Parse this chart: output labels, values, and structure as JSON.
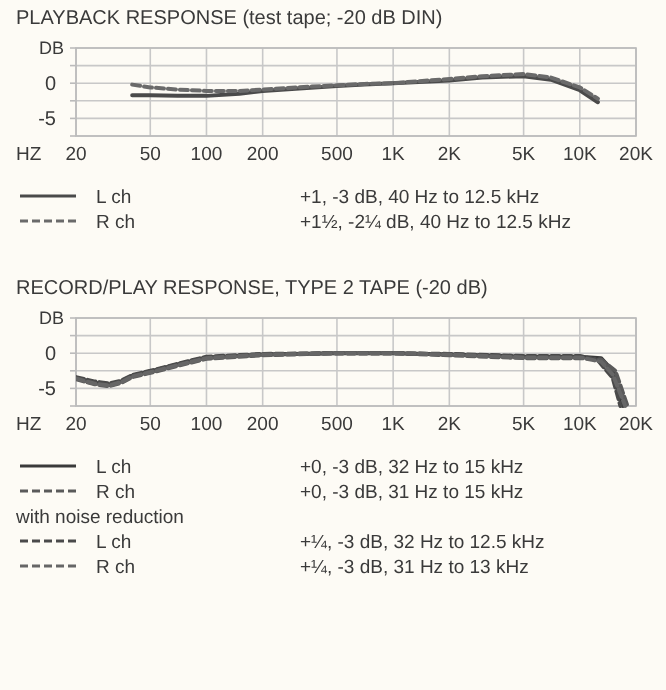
{
  "chart_data": [
    {
      "type": "line",
      "title": "PLAYBACK RESPONSE (test tape; -20 dB DIN)",
      "ylabel": "DB",
      "xlabel": "HZ",
      "log": "x",
      "grid": true,
      "legend": "bottom",
      "xlim": [
        20,
        20000
      ],
      "ylim": [
        -7.5,
        5
      ],
      "xticks": [
        20,
        50,
        100,
        200,
        500,
        {
          "value": 1000,
          "label": "1K"
        },
        {
          "value": 2000,
          "label": "2K"
        },
        {
          "value": 5000,
          "label": "5K"
        },
        {
          "value": 10000,
          "label": "10K"
        },
        {
          "value": 20000,
          "label": "20K"
        }
      ],
      "yticks": [
        {
          "value": 5,
          "label": null
        },
        {
          "value": 2.5,
          "label": null
        },
        {
          "value": 0,
          "label": "0"
        },
        {
          "value": -2.5,
          "label": null
        },
        {
          "value": -5,
          "label": "-5"
        },
        {
          "value": -7.5,
          "label": null
        }
      ],
      "series": [
        {
          "name": "L ch",
          "color": "#4a4a4a",
          "line_style": "solid",
          "x": [
            40,
            50,
            70,
            100,
            150,
            200,
            300,
            500,
            700,
            1000,
            2000,
            3000,
            5000,
            7000,
            10000,
            12500
          ],
          "values": [
            -1.7,
            -1.7,
            -1.8,
            -1.8,
            -1.5,
            -1.1,
            -0.8,
            -0.4,
            -0.2,
            0,
            0.4,
            0.8,
            1.0,
            0.5,
            -1.0,
            -2.7
          ]
        },
        {
          "name": "R ch",
          "color": "#6a6a6a",
          "line_style": "dashed",
          "x": [
            40,
            50,
            70,
            100,
            150,
            200,
            300,
            500,
            700,
            1000,
            2000,
            3000,
            5000,
            7000,
            10000,
            12500
          ],
          "values": [
            -0.2,
            -0.6,
            -0.9,
            -1.1,
            -1.1,
            -0.9,
            -0.6,
            -0.3,
            -0.1,
            0,
            0.6,
            1.0,
            1.3,
            0.8,
            -0.6,
            -2.2
          ]
        }
      ],
      "annotations": [
        "+1, -3 dB, 40 Hz to 12.5 kHz",
        "+1½, -2¼ dB, 40 Hz to 12.5 kHz"
      ]
    },
    {
      "type": "line",
      "title": "RECORD/PLAY RESPONSE, TYPE 2 TAPE (-20 dB)",
      "ylabel": "DB",
      "xlabel": "HZ",
      "log": "x",
      "grid": true,
      "legend": "bottom",
      "xlim": [
        20,
        20000
      ],
      "ylim": [
        -7.5,
        5
      ],
      "xticks": [
        20,
        50,
        100,
        200,
        500,
        {
          "value": 1000,
          "label": "1K"
        },
        {
          "value": 2000,
          "label": "2K"
        },
        {
          "value": 5000,
          "label": "5K"
        },
        {
          "value": 10000,
          "label": "10K"
        },
        {
          "value": 20000,
          "label": "20K"
        }
      ],
      "yticks": [
        {
          "value": 5,
          "label": null
        },
        {
          "value": 2.5,
          "label": null
        },
        {
          "value": 0,
          "label": "0"
        },
        {
          "value": -2.5,
          "label": null
        },
        {
          "value": -5,
          "label": "-5"
        },
        {
          "value": -7.5,
          "label": null
        }
      ],
      "series": [
        {
          "name": "L ch",
          "color": "#3a3a3a",
          "line_style": "solid",
          "x": [
            20,
            25,
            30,
            35,
            40,
            50,
            70,
            100,
            200,
            500,
            1000,
            2000,
            5000,
            10000,
            13000,
            15000,
            17000
          ],
          "values": [
            -3.5,
            -4.2,
            -4.5,
            -4.0,
            -3.2,
            -2.6,
            -1.6,
            -0.6,
            -0.2,
            0,
            0,
            -0.2,
            -0.5,
            -0.5,
            -0.7,
            -2.5,
            -7.5
          ]
        },
        {
          "name": "R ch",
          "color": "#5a5a5a",
          "line_style": "dashed",
          "x": [
            20,
            25,
            30,
            35,
            40,
            50,
            70,
            100,
            200,
            500,
            1000,
            2000,
            5000,
            10000,
            13000,
            15500,
            18000
          ],
          "values": [
            -3.7,
            -4.4,
            -4.7,
            -4.2,
            -3.4,
            -2.8,
            -1.8,
            -0.8,
            -0.3,
            0,
            0,
            -0.3,
            -0.7,
            -0.7,
            -0.9,
            -2.5,
            -7.5
          ]
        },
        {
          "name": "L ch",
          "color": "#4a4a4a",
          "line_style": "dashed",
          "x": [
            20,
            25,
            30,
            35,
            40,
            50,
            70,
            100,
            200,
            500,
            1000,
            2000,
            5000,
            10000,
            12500,
            15000,
            16500
          ],
          "values": [
            -3.4,
            -4.0,
            -4.3,
            -3.9,
            -3.1,
            -2.5,
            -1.5,
            -0.5,
            -0.1,
            0,
            0,
            -0.1,
            -0.4,
            -0.4,
            -1.0,
            -3.5,
            -7.5
          ]
        },
        {
          "name": "R ch",
          "color": "#666666",
          "line_style": "dashed",
          "x": [
            20,
            25,
            30,
            35,
            40,
            50,
            70,
            100,
            200,
            500,
            1000,
            2000,
            5000,
            10000,
            13000,
            15000,
            17500
          ],
          "values": [
            -3.6,
            -4.3,
            -4.6,
            -4.1,
            -3.3,
            -2.7,
            -1.7,
            -0.7,
            -0.2,
            0,
            0,
            -0.2,
            -0.6,
            -0.6,
            -1.2,
            -3.0,
            -7.5
          ]
        }
      ],
      "annotations": [
        "+0, -3 dB, 32 Hz to 15 kHz",
        "+0, -3 dB, 31 Hz to 15 kHz",
        "with noise reduction",
        "+¼, -3 dB, 32 Hz to 12.5 kHz",
        "+¼, -3 dB, 31 Hz to 13 kHz"
      ]
    }
  ]
}
